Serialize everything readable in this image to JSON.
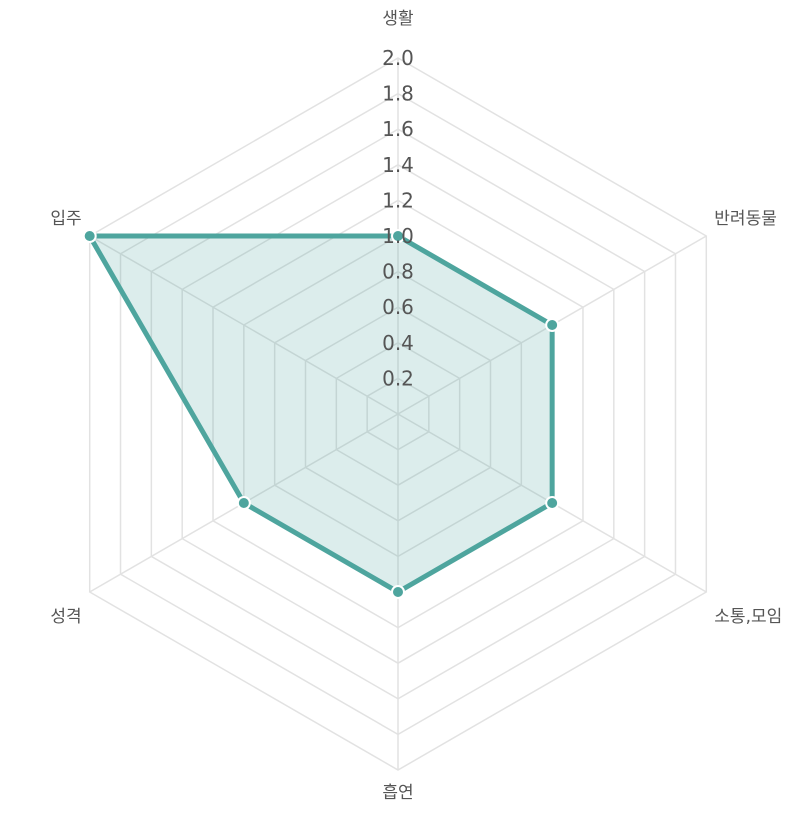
{
  "chart_data": {
    "type": "radar",
    "categories": [
      "생활",
      "반려동물",
      "소통,모임",
      "흡연",
      "성격",
      "입주"
    ],
    "series": [
      {
        "values": [
          1.0,
          1.0,
          1.0,
          1.0,
          1.0,
          2.0
        ]
      }
    ],
    "rlim": [
      0,
      2.0
    ],
    "ticks": [
      "0.2",
      "0.4",
      "0.6",
      "0.8",
      "1.0",
      "1.2",
      "1.4",
      "1.6",
      "1.8",
      "2.0"
    ],
    "grid": true,
    "colors": {
      "series": "#4ea59e",
      "grid": "#e2e2e2",
      "text": "#555555"
    }
  }
}
